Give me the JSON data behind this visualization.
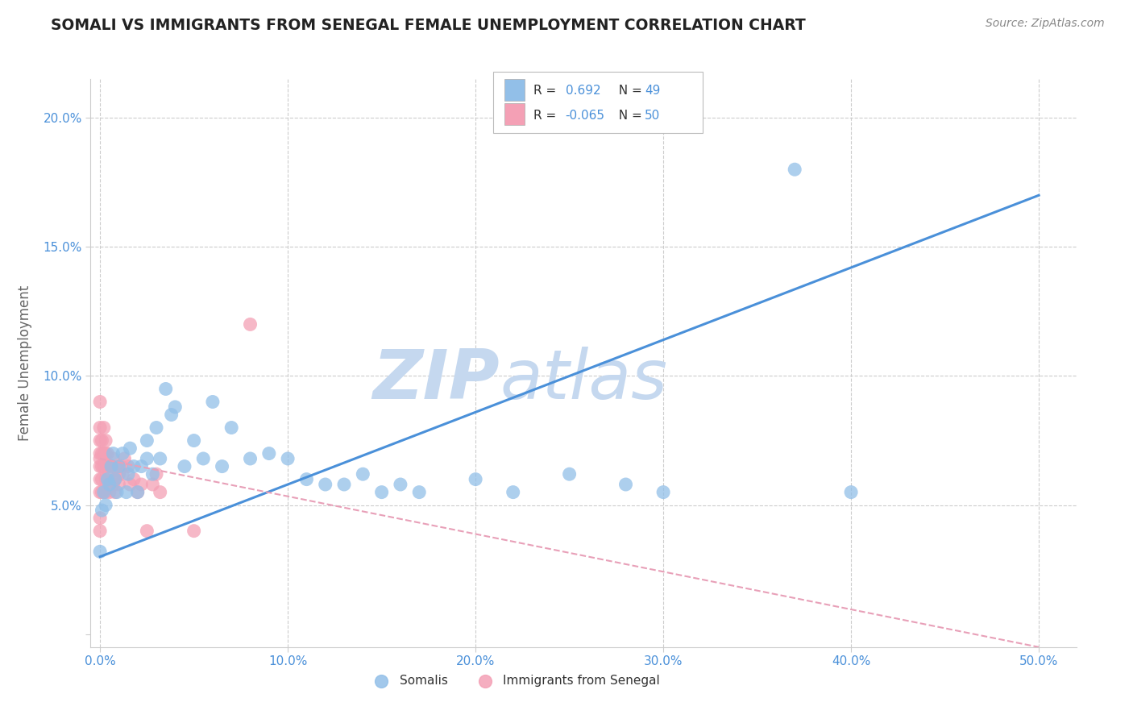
{
  "title": "SOMALI VS IMMIGRANTS FROM SENEGAL FEMALE UNEMPLOYMENT CORRELATION CHART",
  "source": "Source: ZipAtlas.com",
  "ylabel": "Female Unemployment",
  "xlim": [
    -0.005,
    0.52
  ],
  "ylim": [
    -0.005,
    0.215
  ],
  "somali_R": 0.692,
  "somali_N": 49,
  "senegal_R": -0.065,
  "senegal_N": 50,
  "somali_color": "#92bfe8",
  "senegal_color": "#f4a0b5",
  "somali_line_color": "#4a90d9",
  "senegal_line_color": "#e8a0b8",
  "watermark_color": "#c8d8f0",
  "background_color": "#ffffff",
  "grid_color": "#cccccc",
  "somali_x": [
    0.0,
    0.001,
    0.002,
    0.003,
    0.004,
    0.005,
    0.006,
    0.007,
    0.008,
    0.009,
    0.01,
    0.012,
    0.014,
    0.015,
    0.016,
    0.018,
    0.02,
    0.022,
    0.025,
    0.025,
    0.028,
    0.03,
    0.032,
    0.035,
    0.038,
    0.04,
    0.045,
    0.05,
    0.055,
    0.06,
    0.065,
    0.07,
    0.08,
    0.09,
    0.1,
    0.11,
    0.12,
    0.13,
    0.14,
    0.15,
    0.16,
    0.17,
    0.2,
    0.22,
    0.25,
    0.28,
    0.3,
    0.37,
    0.4
  ],
  "somali_y": [
    0.032,
    0.048,
    0.055,
    0.05,
    0.06,
    0.058,
    0.065,
    0.07,
    0.06,
    0.055,
    0.065,
    0.07,
    0.055,
    0.062,
    0.072,
    0.065,
    0.055,
    0.065,
    0.068,
    0.075,
    0.062,
    0.08,
    0.068,
    0.095,
    0.085,
    0.088,
    0.065,
    0.075,
    0.068,
    0.09,
    0.065,
    0.08,
    0.068,
    0.07,
    0.068,
    0.06,
    0.058,
    0.058,
    0.062,
    0.055,
    0.058,
    0.055,
    0.06,
    0.055,
    0.062,
    0.058,
    0.055,
    0.18,
    0.055
  ],
  "senegal_x": [
    0.0,
    0.0,
    0.0,
    0.0,
    0.0,
    0.0,
    0.0,
    0.0,
    0.0,
    0.0,
    0.001,
    0.001,
    0.001,
    0.001,
    0.001,
    0.002,
    0.002,
    0.002,
    0.003,
    0.003,
    0.003,
    0.003,
    0.004,
    0.004,
    0.004,
    0.005,
    0.005,
    0.006,
    0.006,
    0.007,
    0.007,
    0.008,
    0.008,
    0.009,
    0.01,
    0.01,
    0.011,
    0.012,
    0.013,
    0.015,
    0.016,
    0.018,
    0.02,
    0.022,
    0.025,
    0.028,
    0.03,
    0.032,
    0.05,
    0.08
  ],
  "senegal_y": [
    0.04,
    0.045,
    0.055,
    0.06,
    0.065,
    0.068,
    0.07,
    0.075,
    0.08,
    0.09,
    0.055,
    0.06,
    0.065,
    0.07,
    0.075,
    0.065,
    0.07,
    0.08,
    0.055,
    0.06,
    0.07,
    0.075,
    0.058,
    0.065,
    0.07,
    0.055,
    0.062,
    0.058,
    0.065,
    0.058,
    0.068,
    0.055,
    0.06,
    0.065,
    0.058,
    0.062,
    0.065,
    0.062,
    0.068,
    0.065,
    0.058,
    0.06,
    0.055,
    0.058,
    0.04,
    0.058,
    0.062,
    0.055,
    0.04,
    0.12
  ],
  "somali_line_x0": 0.0,
  "somali_line_y0": 0.03,
  "somali_line_x1": 0.5,
  "somali_line_y1": 0.17,
  "senegal_line_x0": 0.0,
  "senegal_line_y0": 0.068,
  "senegal_line_x1": 0.5,
  "senegal_line_y1": -0.005
}
